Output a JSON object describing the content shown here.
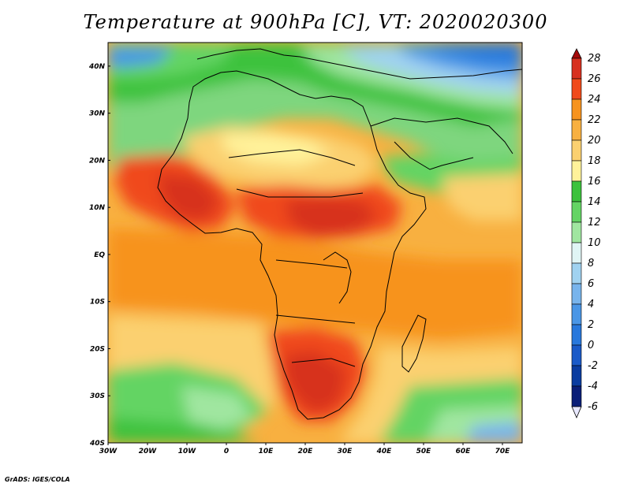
{
  "title": "Temperature at 900hPa [C], VT: 2020020300",
  "footer": "GrADS: IGES/COLA",
  "map": {
    "x_ticks": [
      "30W",
      "20W",
      "10W",
      "0",
      "10E",
      "20E",
      "30E",
      "40E",
      "50E",
      "60E",
      "70E"
    ],
    "y_ticks": [
      "40N",
      "30N",
      "20N",
      "10N",
      "EQ",
      "10S",
      "20S",
      "30S",
      "40S"
    ],
    "lon_range": [
      -30,
      75
    ],
    "lat_range": [
      -40,
      45
    ]
  },
  "colorbar": {
    "labels": [
      "28",
      "26",
      "24",
      "22",
      "20",
      "18",
      "16",
      "14",
      "12",
      "10",
      "8",
      "6",
      "4",
      "2",
      "0",
      "-2",
      "-4",
      "-6"
    ],
    "colors": [
      "#a50a0a",
      "#d7301f",
      "#f04a1a",
      "#f7931e",
      "#f8b040",
      "#fbd070",
      "#fff29a",
      "#3cc23c",
      "#64d464",
      "#a0e6a0",
      "#e0f5f5",
      "#a0d2f0",
      "#78b4ec",
      "#4a96e6",
      "#2878dc",
      "#1a5ac8",
      "#0a3ca0",
      "#0a1e78",
      "#e8e8ff"
    ]
  }
}
